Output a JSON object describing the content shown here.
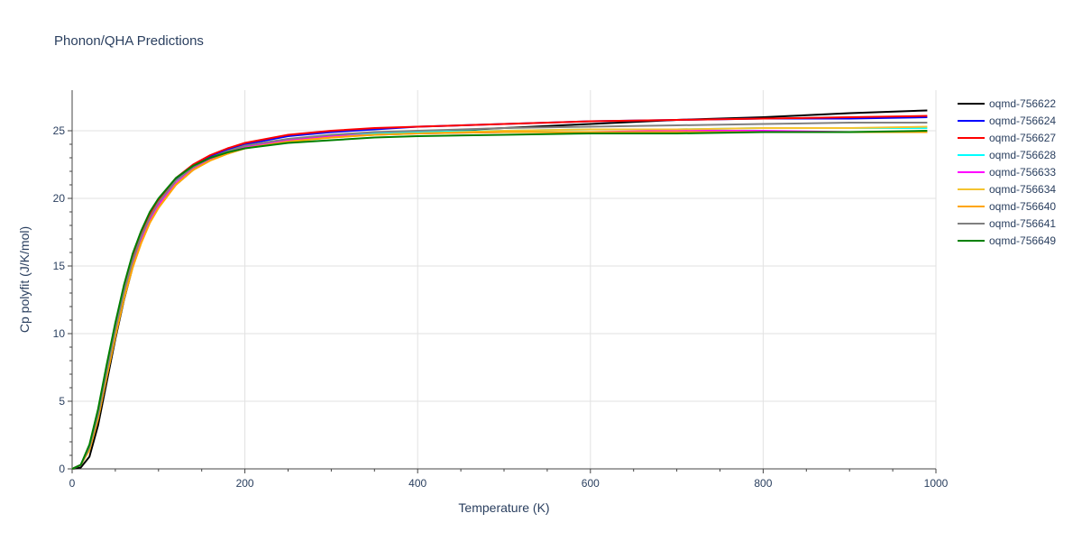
{
  "title": "Phonon/QHA Predictions",
  "chart_data": {
    "type": "line",
    "title": "Phonon/QHA Predictions",
    "xlabel": "Temperature (K)",
    "ylabel": "Cp polyfit (J/K/mol)",
    "xlim": [
      0,
      1000
    ],
    "ylim": [
      0,
      28
    ],
    "xticks": [
      0,
      200,
      400,
      600,
      800,
      1000
    ],
    "yticks": [
      0,
      5,
      10,
      15,
      20,
      25
    ],
    "grid": true,
    "legend_position": "top-right",
    "x": [
      0,
      10,
      20,
      30,
      40,
      50,
      60,
      70,
      80,
      90,
      100,
      120,
      140,
      160,
      180,
      200,
      250,
      300,
      350,
      400,
      500,
      600,
      700,
      800,
      900,
      990
    ],
    "series": [
      {
        "name": "oqmd-756622",
        "color": "#000000",
        "values": [
          0,
          0.1,
          0.9,
          3.2,
          6.4,
          9.6,
          12.5,
          14.9,
          16.8,
          18.3,
          19.4,
          21.0,
          22.1,
          22.9,
          23.4,
          23.8,
          24.3,
          24.6,
          24.8,
          24.9,
          25.2,
          25.5,
          25.8,
          26.0,
          26.3,
          26.5
        ]
      },
      {
        "name": "oqmd-756624",
        "color": "#0000ff",
        "values": [
          0,
          0.3,
          1.6,
          4.1,
          7.3,
          10.4,
          13.2,
          15.5,
          17.3,
          18.7,
          19.8,
          21.4,
          22.4,
          23.1,
          23.6,
          24.0,
          24.6,
          24.9,
          25.1,
          25.3,
          25.5,
          25.7,
          25.8,
          25.9,
          25.9,
          26.0
        ]
      },
      {
        "name": "oqmd-756627",
        "color": "#ff0000",
        "values": [
          0,
          0.3,
          1.6,
          4.1,
          7.3,
          10.5,
          13.3,
          15.6,
          17.4,
          18.8,
          19.9,
          21.5,
          22.5,
          23.2,
          23.7,
          24.1,
          24.7,
          25.0,
          25.2,
          25.3,
          25.5,
          25.7,
          25.8,
          25.9,
          26.0,
          26.1
        ]
      },
      {
        "name": "oqmd-756628",
        "color": "#00ffff",
        "values": [
          0,
          0.3,
          1.5,
          3.9,
          7.0,
          10.1,
          12.9,
          15.2,
          17.0,
          18.4,
          19.5,
          21.1,
          22.2,
          22.9,
          23.4,
          23.8,
          24.3,
          24.6,
          24.8,
          24.9,
          25.0,
          25.1,
          25.1,
          25.2,
          25.2,
          25.2
        ]
      },
      {
        "name": "oqmd-756633",
        "color": "#ff00ff",
        "values": [
          0,
          0.3,
          1.5,
          3.9,
          7.0,
          10.1,
          12.9,
          15.2,
          17.0,
          18.4,
          19.5,
          21.1,
          22.2,
          22.9,
          23.4,
          23.8,
          24.3,
          24.6,
          24.7,
          24.8,
          24.9,
          24.9,
          25.0,
          25.0,
          24.9,
          24.9
        ]
      },
      {
        "name": "oqmd-756634",
        "color": "#f4c430",
        "values": [
          0,
          0.3,
          1.4,
          3.7,
          6.8,
          9.8,
          12.6,
          14.9,
          16.7,
          18.2,
          19.3,
          21.0,
          22.1,
          22.8,
          23.3,
          23.7,
          24.2,
          24.5,
          24.7,
          24.8,
          25.0,
          25.1,
          25.1,
          25.2,
          25.2,
          25.3
        ]
      },
      {
        "name": "oqmd-756640",
        "color": "#ffa500",
        "values": [
          0,
          0.3,
          1.4,
          3.7,
          6.8,
          9.8,
          12.6,
          14.9,
          16.7,
          18.2,
          19.3,
          21.0,
          22.1,
          22.8,
          23.3,
          23.7,
          24.2,
          24.5,
          24.7,
          24.8,
          24.9,
          24.9,
          24.9,
          24.9,
          24.9,
          24.9
        ]
      },
      {
        "name": "oqmd-756641",
        "color": "#808080",
        "values": [
          0,
          0.3,
          1.6,
          4.0,
          7.2,
          10.3,
          13.1,
          15.4,
          17.2,
          18.6,
          19.7,
          21.3,
          22.3,
          23.0,
          23.5,
          23.9,
          24.4,
          24.7,
          24.9,
          25.0,
          25.2,
          25.3,
          25.4,
          25.5,
          25.6,
          25.6
        ]
      },
      {
        "name": "oqmd-756649",
        "color": "#008000",
        "values": [
          0,
          0.3,
          1.8,
          4.4,
          7.7,
          10.8,
          13.6,
          15.9,
          17.6,
          19.0,
          20.0,
          21.5,
          22.4,
          23.0,
          23.4,
          23.7,
          24.1,
          24.3,
          24.5,
          24.6,
          24.7,
          24.8,
          24.8,
          24.9,
          24.9,
          25.0
        ]
      }
    ]
  }
}
